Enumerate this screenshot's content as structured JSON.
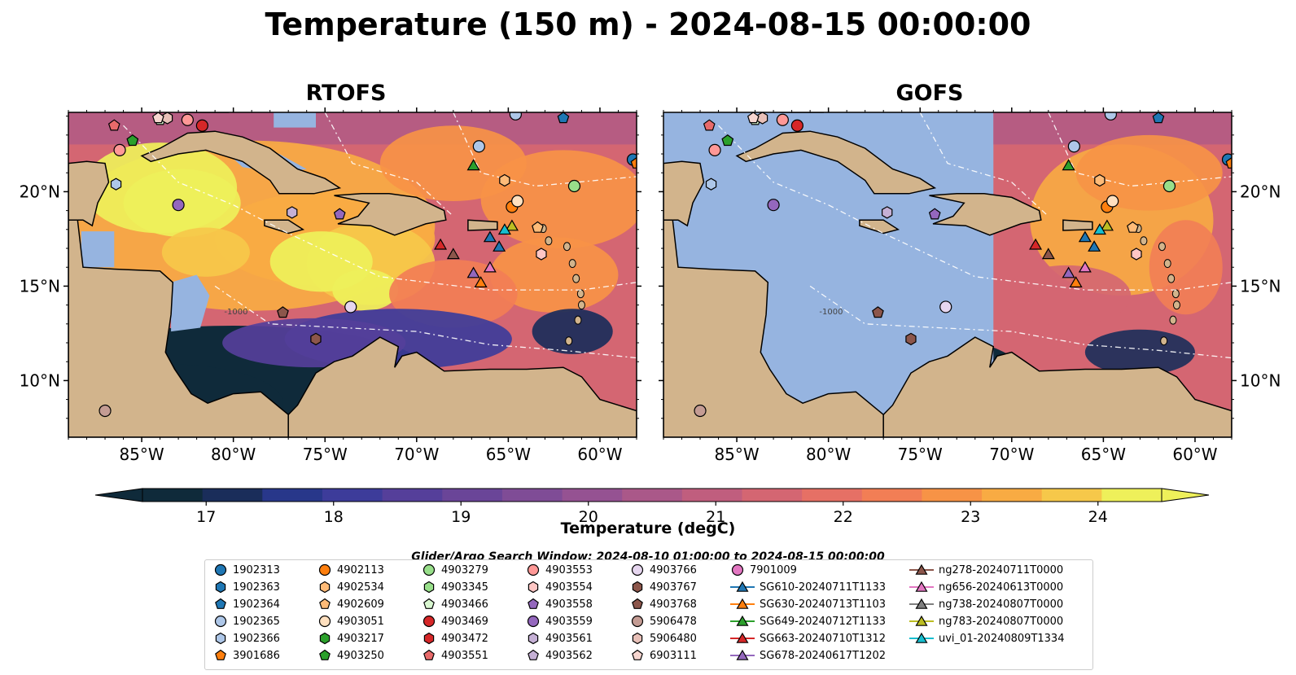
{
  "figure": {
    "title": "Temperature (150 m) - 2024-08-15 00:00:00",
    "search_window": "Glider/Argo Search Window: 2024-08-10 01:00:00 to 2024-08-15 00:00:00"
  },
  "chart_data": {
    "type": "heatmap",
    "panels": [
      {
        "title": "RTOFS",
        "field": "full",
        "ytick_side": "left"
      },
      {
        "title": "GOFS",
        "field": "east_of_71W",
        "ytick_side": "right"
      }
    ],
    "xlim": [
      -89,
      -58
    ],
    "ylim": [
      7,
      24.2
    ],
    "xticks": [
      -85,
      -80,
      -75,
      -70,
      -65,
      -60
    ],
    "xtick_labels": [
      "85°W",
      "80°W",
      "75°W",
      "70°W",
      "65°W",
      "60°W"
    ],
    "yticks": [
      10,
      15,
      20
    ],
    "ytick_labels": [
      "10°N",
      "15°N",
      "20°N"
    ],
    "contour_labels": [
      "-1000"
    ],
    "colorbar": {
      "label": "Temperature (degC)",
      "min": 16.5,
      "max": 24.5,
      "step": 0.5,
      "ticks": [
        17,
        18,
        19,
        20,
        21,
        22,
        23,
        24
      ],
      "extend": "both",
      "colors": [
        "#0f2a3a",
        "#1a2d5a",
        "#28378a",
        "#3d3c9a",
        "#553f9a",
        "#6a4598",
        "#7f4c96",
        "#955292",
        "#aa5889",
        "#c05e7e",
        "#d46672",
        "#e67065",
        "#f27e55",
        "#f79346",
        "#f8ab43",
        "#f6c84a",
        "#eef05a"
      ]
    },
    "colors": {
      "land": "#d2b48c",
      "no_data": "#96b4e0",
      "deep_cool": "#0f2a3a"
    }
  },
  "legend": {
    "columns": [
      [
        {
          "label": "1902313",
          "shape": "circle",
          "color": "#1f77b4"
        },
        {
          "label": "1902363",
          "shape": "hexagon",
          "color": "#1f77b4"
        },
        {
          "label": "1902364",
          "shape": "pentagon",
          "color": "#1f77b4"
        },
        {
          "label": "1902365",
          "shape": "circle",
          "color": "#aec7e8"
        },
        {
          "label": "1902366",
          "shape": "hexagon",
          "color": "#aec7e8"
        },
        {
          "label": "3901686",
          "shape": "pentagon",
          "color": "#ff7f0e"
        }
      ],
      [
        {
          "label": "4902113",
          "shape": "circle",
          "color": "#ff7f0e"
        },
        {
          "label": "4902534",
          "shape": "hexagon",
          "color": "#ffbb78"
        },
        {
          "label": "4902609",
          "shape": "pentagon",
          "color": "#ffbb78"
        },
        {
          "label": "4903051",
          "shape": "circle",
          "color": "#ffe0bf"
        },
        {
          "label": "4903217",
          "shape": "hexagon",
          "color": "#2ca02c"
        },
        {
          "label": "4903250",
          "shape": "pentagon",
          "color": "#2ca02c"
        }
      ],
      [
        {
          "label": "4903279",
          "shape": "circle",
          "color": "#98df8a"
        },
        {
          "label": "4903345",
          "shape": "hexagon",
          "color": "#98df8a"
        },
        {
          "label": "4903466",
          "shape": "pentagon",
          "color": "#d9f7d0"
        },
        {
          "label": "4903469",
          "shape": "circle",
          "color": "#d62728"
        },
        {
          "label": "4903472",
          "shape": "hexagon",
          "color": "#d62728"
        },
        {
          "label": "4903551",
          "shape": "pentagon",
          "color": "#e86a6a"
        }
      ],
      [
        {
          "label": "4903553",
          "shape": "circle",
          "color": "#ff9896"
        },
        {
          "label": "4903554",
          "shape": "hexagon",
          "color": "#ffc6c4"
        },
        {
          "label": "4903558",
          "shape": "pentagon",
          "color": "#9467bd"
        },
        {
          "label": "4903559",
          "shape": "circle",
          "color": "#9467bd"
        },
        {
          "label": "4903561",
          "shape": "hexagon",
          "color": "#c5b0d5"
        },
        {
          "label": "4903562",
          "shape": "pentagon",
          "color": "#c5b0d5"
        }
      ],
      [
        {
          "label": "4903766",
          "shape": "circle",
          "color": "#e6d6ef"
        },
        {
          "label": "4903767",
          "shape": "hexagon",
          "color": "#8c564b"
        },
        {
          "label": "4903768",
          "shape": "pentagon",
          "color": "#8c564b"
        },
        {
          "label": "5906478",
          "shape": "circle",
          "color": "#c49c94"
        },
        {
          "label": "5906480",
          "shape": "hexagon",
          "color": "#e8c0b8"
        },
        {
          "label": "6903111",
          "shape": "pentagon",
          "color": "#f7d6d0"
        }
      ],
      [
        {
          "label": "7901009",
          "shape": "circle",
          "color": "#e377c2"
        },
        {
          "label": "SG610-20240711T1133",
          "shape": "triangle",
          "color": "#1f77b4"
        },
        {
          "label": "SG630-20240713T1103",
          "shape": "triangle",
          "color": "#ff7f0e"
        },
        {
          "label": "SG649-20240712T1133",
          "shape": "triangle",
          "color": "#2ca02c"
        },
        {
          "label": "SG663-20240710T1312",
          "shape": "triangle",
          "color": "#d62728"
        },
        {
          "label": "SG678-20240617T1202",
          "shape": "triangle",
          "color": "#9467bd"
        }
      ],
      [
        {
          "label": "ng278-20240711T0000",
          "shape": "triangle",
          "color": "#8c564b"
        },
        {
          "label": "ng656-20240613T0000",
          "shape": "triangle",
          "color": "#e377c2"
        },
        {
          "label": "ng738-20240807T0000",
          "shape": "triangle",
          "color": "#7f7f7f"
        },
        {
          "label": "ng783-20240807T0000",
          "shape": "triangle",
          "color": "#bcbd22"
        },
        {
          "label": "uvi_01-20240809T1334",
          "shape": "triangle",
          "color": "#17becf"
        }
      ]
    ]
  },
  "markers": [
    {
      "id": "1902313",
      "lon": -58.2,
      "lat": 21.7,
      "shape": "circle",
      "color": "#1f77b4"
    },
    {
      "id": "1902364",
      "lon": -62.0,
      "lat": 23.9,
      "shape": "pentagon",
      "color": "#1f77b4"
    },
    {
      "id": "1902365",
      "lon": -66.6,
      "lat": 22.4,
      "shape": "circle",
      "color": "#aec7e8"
    },
    {
      "id": "1902365",
      "lon": -64.6,
      "lat": 24.1,
      "shape": "circle",
      "color": "#aec7e8"
    },
    {
      "id": "1902366",
      "lon": -86.4,
      "lat": 20.4,
      "shape": "hexagon",
      "color": "#aec7e8"
    },
    {
      "id": "3901686",
      "lon": -58.0,
      "lat": 21.5,
      "shape": "pentagon",
      "color": "#ff7f0e"
    },
    {
      "id": "4902113",
      "lon": -64.8,
      "lat": 19.2,
      "shape": "circle",
      "color": "#ff7f0e"
    },
    {
      "id": "4902534",
      "lon": -65.2,
      "lat": 20.6,
      "shape": "hexagon",
      "color": "#ffbb78"
    },
    {
      "id": "4902609",
      "lon": -63.4,
      "lat": 18.1,
      "shape": "pentagon",
      "color": "#ffbb78"
    },
    {
      "id": "4903051",
      "lon": -64.5,
      "lat": 19.5,
      "shape": "circle",
      "color": "#ffe0bf"
    },
    {
      "id": "4903250",
      "lon": -85.5,
      "lat": 22.7,
      "shape": "pentagon",
      "color": "#2ca02c"
    },
    {
      "id": "4903279",
      "lon": -61.4,
      "lat": 20.3,
      "shape": "circle",
      "color": "#98df8a"
    },
    {
      "id": "4903466",
      "lon": -84.0,
      "lat": 23.8,
      "shape": "pentagon",
      "color": "#d9f7d0"
    },
    {
      "id": "4903469",
      "lon": -81.7,
      "lat": 23.5,
      "shape": "circle",
      "color": "#d62728"
    },
    {
      "id": "4903551",
      "lon": -86.5,
      "lat": 23.5,
      "shape": "pentagon",
      "color": "#e86a6a"
    },
    {
      "id": "4903553",
      "lon": -82.5,
      "lat": 23.8,
      "shape": "circle",
      "color": "#ff9896"
    },
    {
      "id": "4903553",
      "lon": -86.2,
      "lat": 22.2,
      "shape": "circle",
      "color": "#ff9896"
    },
    {
      "id": "4903554",
      "lon": -63.2,
      "lat": 16.7,
      "shape": "hexagon",
      "color": "#ffc6c4"
    },
    {
      "id": "4903558",
      "lon": -74.2,
      "lat": 18.8,
      "shape": "pentagon",
      "color": "#9467bd"
    },
    {
      "id": "4903559",
      "lon": -83.0,
      "lat": 19.3,
      "shape": "circle",
      "color": "#9467bd"
    },
    {
      "id": "4903561",
      "lon": -76.8,
      "lat": 18.9,
      "shape": "hexagon",
      "color": "#c5b0d5"
    },
    {
      "id": "4903766",
      "lon": -73.6,
      "lat": 13.9,
      "shape": "circle",
      "color": "#e6d6ef"
    },
    {
      "id": "4903767",
      "lon": -75.5,
      "lat": 12.2,
      "shape": "hexagon",
      "color": "#8c564b"
    },
    {
      "id": "4903768",
      "lon": -77.3,
      "lat": 13.6,
      "shape": "pentagon",
      "color": "#8c564b"
    },
    {
      "id": "5906478",
      "lon": -87.0,
      "lat": 8.4,
      "shape": "circle",
      "color": "#c49c94"
    },
    {
      "id": "5906480",
      "lon": -83.6,
      "lat": 23.9,
      "shape": "hexagon",
      "color": "#e8c0b8"
    },
    {
      "id": "6903111",
      "lon": -84.1,
      "lat": 23.9,
      "shape": "pentagon",
      "color": "#f7d6d0"
    },
    {
      "id": "SG610",
      "lon": -66.0,
      "lat": 17.6,
      "shape": "triangle",
      "color": "#1f77b4"
    },
    {
      "id": "SG610",
      "lon": -65.5,
      "lat": 17.1,
      "shape": "triangle",
      "color": "#1f77b4"
    },
    {
      "id": "SG630",
      "lon": -66.5,
      "lat": 15.2,
      "shape": "triangle",
      "color": "#ff7f0e"
    },
    {
      "id": "SG649",
      "lon": -66.9,
      "lat": 21.4,
      "shape": "triangle",
      "color": "#2ca02c"
    },
    {
      "id": "SG663",
      "lon": -68.7,
      "lat": 17.2,
      "shape": "triangle",
      "color": "#d62728"
    },
    {
      "id": "ng278",
      "lon": -68.0,
      "lat": 16.7,
      "shape": "triangle",
      "color": "#8c564b"
    },
    {
      "id": "SG678",
      "lon": -66.9,
      "lat": 15.7,
      "shape": "triangle",
      "color": "#9467bd"
    },
    {
      "id": "ng656",
      "lon": -66.0,
      "lat": 16.0,
      "shape": "triangle",
      "color": "#e377c2"
    },
    {
      "id": "ng783",
      "lon": -64.8,
      "lat": 18.2,
      "shape": "triangle",
      "color": "#bcbd22"
    },
    {
      "id": "uvi_01",
      "lon": -65.2,
      "lat": 18.0,
      "shape": "triangle",
      "color": "#17becf"
    }
  ]
}
